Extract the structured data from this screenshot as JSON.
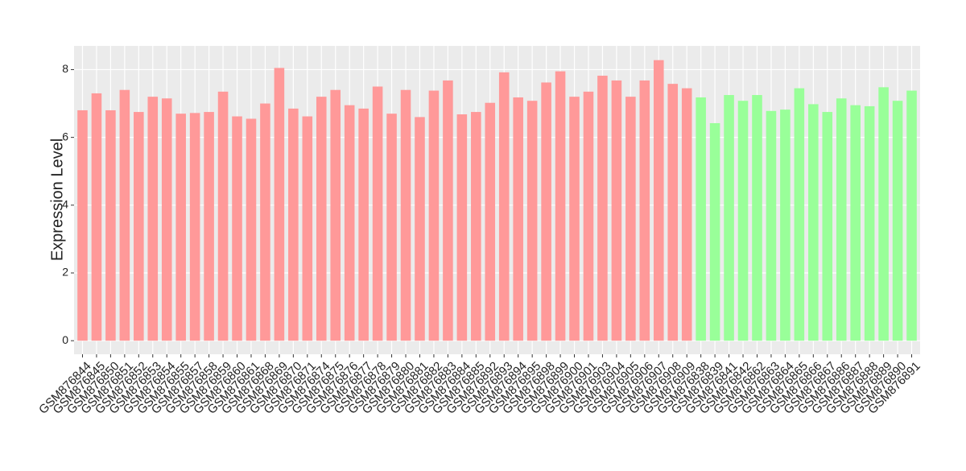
{
  "chart_data": {
    "type": "bar",
    "y_label": "Expression Level",
    "categories": [
      "GSM876844",
      "GSM876845",
      "GSM876850",
      "GSM876851",
      "GSM876852",
      "GSM876853",
      "GSM876854",
      "GSM876855",
      "GSM876857",
      "GSM876858",
      "GSM876859",
      "GSM876860",
      "GSM876861",
      "GSM876868",
      "GSM876869",
      "GSM876870",
      "GSM876871",
      "GSM876874",
      "GSM876875",
      "GSM876876",
      "GSM876877",
      "GSM876878",
      "GSM876879",
      "GSM876880",
      "GSM876881",
      "GSM876882",
      "GSM876883",
      "GSM876884",
      "GSM876885",
      "GSM876892",
      "GSM876893",
      "GSM876894",
      "GSM876895",
      "GSM876898",
      "GSM876899",
      "GSM876900",
      "GSM876901",
      "GSM876903",
      "GSM876904",
      "GSM876905",
      "GSM876906",
      "GSM876907",
      "GSM876908",
      "GSM876909",
      "GSM876838",
      "GSM876839",
      "GSM876841",
      "GSM876842",
      "GSM876862",
      "GSM876863",
      "GSM876864",
      "GSM876865",
      "GSM876866",
      "GSM876867",
      "GSM876886",
      "GSM876887",
      "GSM876888",
      "GSM876889",
      "GSM876890",
      "GSM876891"
    ],
    "values": [
      6.8,
      7.3,
      6.8,
      7.4,
      6.75,
      7.2,
      7.15,
      6.7,
      6.72,
      6.75,
      7.35,
      6.62,
      6.55,
      7.0,
      8.05,
      6.85,
      6.62,
      7.2,
      7.4,
      6.95,
      6.85,
      7.5,
      6.7,
      7.4,
      6.6,
      7.38,
      7.68,
      6.68,
      6.75,
      7.02,
      7.92,
      7.18,
      7.08,
      7.62,
      7.95,
      7.2,
      7.35,
      7.82,
      7.68,
      7.2,
      7.68,
      8.28,
      7.58,
      7.45,
      7.18,
      6.42,
      7.25,
      7.08,
      7.25,
      6.78,
      6.82,
      7.45,
      6.98,
      6.75,
      7.15,
      6.95,
      6.92,
      7.48,
      7.08,
      7.38
    ],
    "colors": [
      "#ff9999",
      "#ff9999",
      "#ff9999",
      "#ff9999",
      "#ff9999",
      "#ff9999",
      "#ff9999",
      "#ff9999",
      "#ff9999",
      "#ff9999",
      "#ff9999",
      "#ff9999",
      "#ff9999",
      "#ff9999",
      "#ff9999",
      "#ff9999",
      "#ff9999",
      "#ff9999",
      "#ff9999",
      "#ff9999",
      "#ff9999",
      "#ff9999",
      "#ff9999",
      "#ff9999",
      "#ff9999",
      "#ff9999",
      "#ff9999",
      "#ff9999",
      "#ff9999",
      "#ff9999",
      "#ff9999",
      "#ff9999",
      "#ff9999",
      "#ff9999",
      "#ff9999",
      "#ff9999",
      "#ff9999",
      "#ff9999",
      "#ff9999",
      "#ff9999",
      "#ff9999",
      "#ff9999",
      "#ff9999",
      "#ff9999",
      "#99ff99",
      "#99ff99",
      "#99ff99",
      "#99ff99",
      "#99ff99",
      "#99ff99",
      "#99ff99",
      "#99ff99",
      "#99ff99",
      "#99ff99",
      "#99ff99",
      "#99ff99",
      "#99ff99",
      "#99ff99",
      "#99ff99",
      "#99ff99"
    ],
    "ylim": [
      -0.4,
      8.7
    ],
    "yticks": [
      0,
      2,
      4,
      6,
      8
    ],
    "grid": true
  }
}
